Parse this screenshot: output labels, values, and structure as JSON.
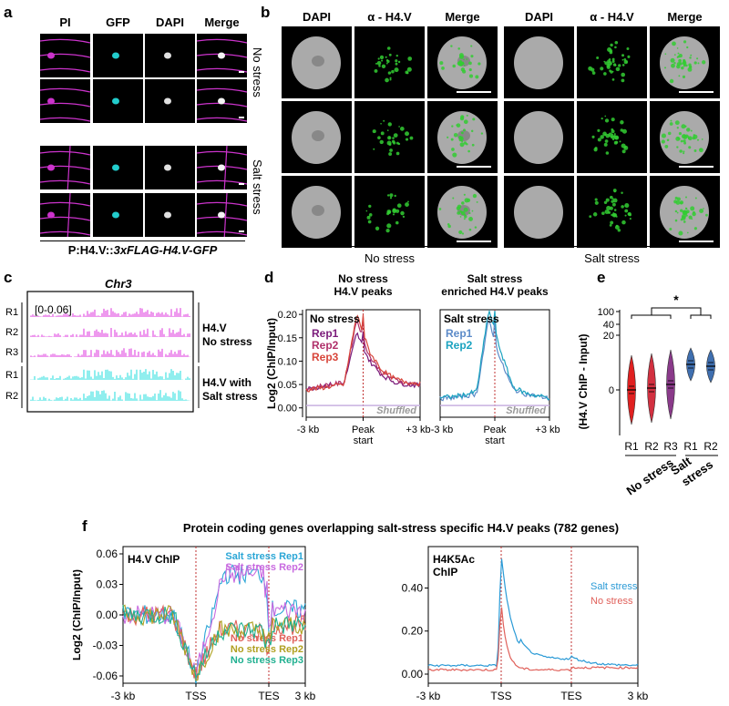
{
  "panel_a": {
    "label": "a",
    "headers": [
      "PI",
      "GFP",
      "DAPI",
      "Merge"
    ],
    "rows": [
      "No stress",
      "Salt stress"
    ],
    "construct_prefix": "P:H4.V::",
    "construct_italic": "3xFLAG-H4.V-GFP",
    "colors": {
      "pi": "#cc33cc",
      "gfp": "#22cccc",
      "dapi": "#e0e0e0"
    }
  },
  "panel_b": {
    "label": "b",
    "headers": [
      "DAPI",
      "α - H4.V",
      "Merge",
      "DAPI",
      "α - H4.V",
      "Merge"
    ],
    "groups": [
      "No stress",
      "Salt stress"
    ],
    "colors": {
      "dapi": "#bdbdbd",
      "h4v": "#33cc33"
    }
  },
  "panel_c": {
    "label": "c",
    "title": "Chr3",
    "range": "[0-0.06]",
    "rows": [
      "R1",
      "R2",
      "R3",
      "R1",
      "R2"
    ],
    "group1": [
      "H4.V",
      "No stress"
    ],
    "group2": [
      "H4.V with",
      "Salt stress"
    ],
    "colors": {
      "no_stress": "#dd33dd",
      "salt": "#22dddd"
    }
  },
  "panel_d": {
    "label": "d",
    "chart_data": [
      {
        "type": "line",
        "title": "No stress",
        "subtitle": "H4.V peaks",
        "legend_title": "No stress",
        "xlabel": "",
        "ylabel": "Log2 (ChIP/Input)",
        "ylim": [
          -0.02,
          0.21
        ],
        "yticks": [
          "0.00",
          "0.05",
          "0.10",
          "0.15",
          "0.20"
        ],
        "xticks": [
          "-3 kb",
          "Peak start",
          "+3 kb"
        ],
        "annotation": "Shuffled",
        "series": [
          {
            "name": "Rep1",
            "color": "#7a1a7a",
            "shape": [
              0.04,
              0.045,
              0.05,
              0.052,
              0.16,
              0.1,
              0.07,
              0.055,
              0.05,
              0.048
            ]
          },
          {
            "name": "Rep2",
            "color": "#b0306a",
            "shape": [
              0.042,
              0.046,
              0.05,
              0.054,
              0.19,
              0.11,
              0.075,
              0.06,
              0.053,
              0.05
            ]
          },
          {
            "name": "Rep3",
            "color": "#d8453a",
            "shape": [
              0.038,
              0.042,
              0.046,
              0.05,
              0.2,
              0.12,
              0.08,
              0.062,
              0.055,
              0.052
            ]
          }
        ]
      },
      {
        "type": "line",
        "title": "Salt stress",
        "subtitle": "enriched H4.V peaks",
        "legend_title": "Salt stress",
        "ylim": [
          -0.02,
          0.21
        ],
        "xticks": [
          "-3 kb",
          "Peak start",
          "+3 kb"
        ],
        "annotation": "Shuffled",
        "series": [
          {
            "name": "Rep1",
            "color": "#5b8ac8",
            "shape": [
              0.02,
              0.022,
              0.025,
              0.03,
              0.19,
              0.1,
              0.04,
              0.03,
              0.025,
              0.02
            ]
          },
          {
            "name": "Rep2",
            "color": "#1ba3c0",
            "shape": [
              0.022,
              0.024,
              0.028,
              0.035,
              0.21,
              0.12,
              0.045,
              0.032,
              0.026,
              0.022
            ]
          }
        ]
      }
    ]
  },
  "panel_e": {
    "label": "e",
    "chart_data": {
      "type": "violin",
      "ylabel": "(H4.V ChIP - Input)",
      "yticks": [
        "100",
        "40",
        "20",
        "0"
      ],
      "categories": [
        "R1",
        "R2",
        "R3",
        "R1",
        "R2"
      ],
      "groups": [
        "No stress",
        "Salt stress"
      ],
      "significance": "*",
      "colors": [
        "#e02020",
        "#d23040",
        "#8a3a8a",
        "#3f6fb0",
        "#3f6fb0"
      ]
    }
  },
  "panel_f": {
    "label": "f",
    "title": "Protein coding genes overlapping salt-stress specific H4.V peaks (782 genes)",
    "chart_data": [
      {
        "type": "line",
        "title": "H4.V ChIP",
        "ylabel": "Log2 (ChIP/Input)",
        "yticks": [
          "0.06",
          "0.03",
          "0.00",
          "-0.03",
          "-0.06"
        ],
        "xticks": [
          "-3 kb",
          "TSS",
          "TES",
          "3 kb"
        ],
        "series": [
          {
            "name": "Salt stress Rep1",
            "color": "#2aa6d6"
          },
          {
            "name": "Salt stress Rep2",
            "color": "#c86ae0"
          },
          {
            "name": "No stress Rep1",
            "color": "#e0605a"
          },
          {
            "name": "No stress Rep2",
            "color": "#b0a020"
          },
          {
            "name": "No stress Rep3",
            "color": "#20b090"
          }
        ]
      },
      {
        "type": "line",
        "title": "H4K5Ac",
        "title2": "ChIP",
        "yticks": [
          "0.40",
          "0.20",
          "0.00"
        ],
        "xticks": [
          "-3 kb",
          "TSS",
          "TES",
          "3 kb"
        ],
        "series": [
          {
            "name": "Salt stress",
            "color": "#2a9ad6"
          },
          {
            "name": "No stress",
            "color": "#e0605a"
          }
        ]
      }
    ]
  }
}
